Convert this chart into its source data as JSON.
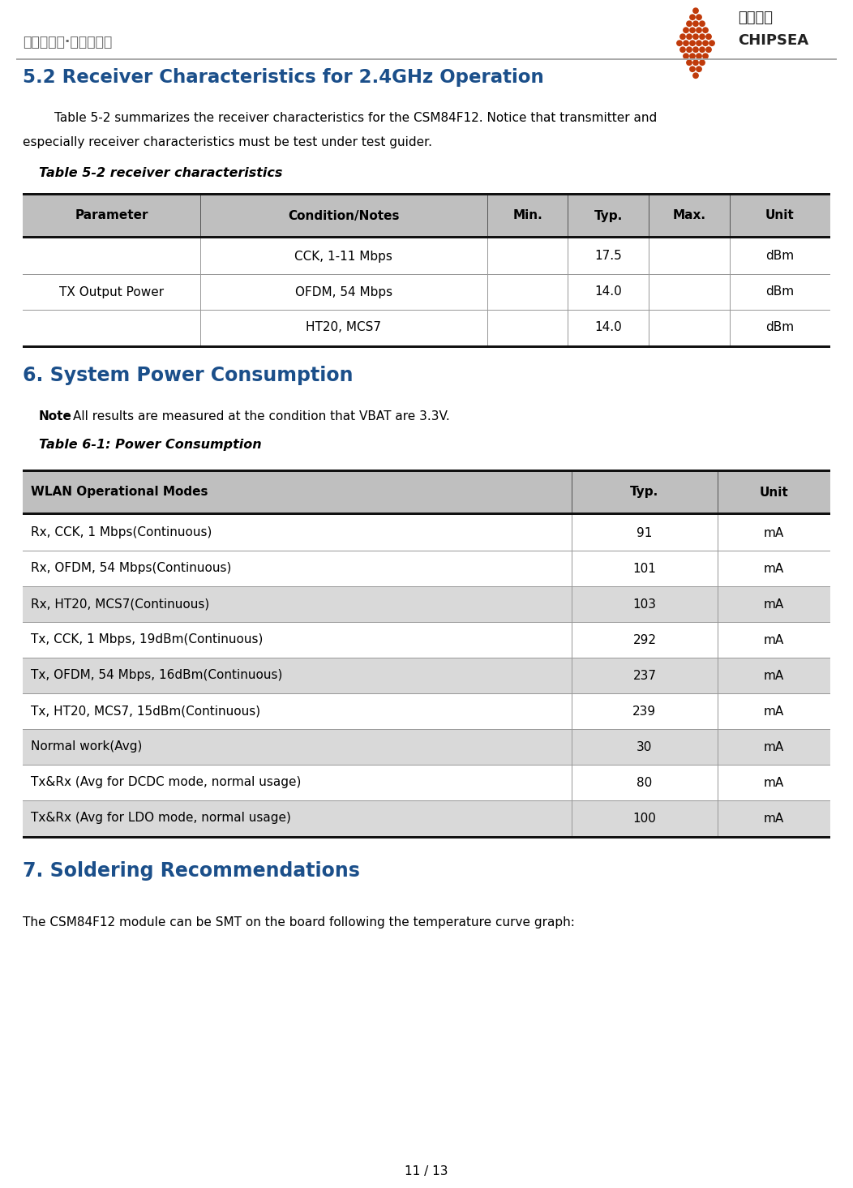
{
  "header_text": "聚点滴之芯·成浩瀚之海",
  "logo_text1": "芯海科技",
  "logo_text2": "CHIPSEA",
  "section52_title": "5.2 Receiver Characteristics for 2.4GHz Operation",
  "section52_body1": "        Table 5-2 summarizes the receiver characteristics for the CSM84F12. Notice that transmitter and",
  "section52_body2": "especially receiver characteristics must be test under test guider.",
  "table52_title": "Table 5-2 receiver characteristics",
  "table52_headers": [
    "Parameter",
    "Condition/Notes",
    "Min.",
    "Typ.",
    "Max.",
    "Unit"
  ],
  "table52_col_ratios": [
    0.22,
    0.355,
    0.1,
    0.1,
    0.1,
    0.125
  ],
  "table52_rows": [
    [
      "TX Output Power",
      "CCK, 1-11 Mbps",
      "",
      "17.5",
      "",
      "dBm"
    ],
    [
      "TX Output Power",
      "OFDM, 54 Mbps",
      "",
      "14.0",
      "",
      "dBm"
    ],
    [
      "TX Output Power",
      "HT20, MCS7",
      "",
      "14.0",
      "",
      "dBm"
    ]
  ],
  "section6_title": "6. System Power Consumption",
  "section6_note_bold": "Note",
  "section6_note_normal": ": All results are measured at the condition that VBAT are 3.3V.",
  "table61_title": "Table 6-1: Power Consumption",
  "table61_headers": [
    "WLAN Operational Modes",
    "Typ.",
    "Unit"
  ],
  "table61_col_ratios": [
    0.68,
    0.18,
    0.14
  ],
  "table61_rows": [
    [
      "Rx, CCK, 1 Mbps(Continuous)",
      "91",
      "mA"
    ],
    [
      "Rx, OFDM, 54 Mbps(Continuous)",
      "101",
      "mA"
    ],
    [
      "Rx, HT20, MCS7(Continuous)",
      "103",
      "mA"
    ],
    [
      "Tx, CCK, 1 Mbps, 19dBm(Continuous)",
      "292",
      "mA"
    ],
    [
      "Tx, OFDM, 54 Mbps, 16dBm(Continuous)",
      "237",
      "mA"
    ],
    [
      "Tx, HT20, MCS7, 15dBm(Continuous)",
      "239",
      "mA"
    ],
    [
      "Normal work(Avg)",
      "30",
      "mA"
    ],
    [
      "Tx&Rx (Avg for DCDC mode, normal usage)",
      "80",
      "mA"
    ],
    [
      "Tx&Rx (Avg for LDO mode, normal usage)",
      "100",
      "mA"
    ]
  ],
  "section7_title": "7. Soldering Recommendations",
  "section7_body": "The CSM84F12 module can be SMT on the board following the temperature curve graph:",
  "footer_text": "11 / 13",
  "section_title_color": "#1B4F8A",
  "table_header_bg": "#BFBFBF",
  "table_row_bg_white": "#FFFFFF",
  "table_row_bg_grey": "#D9D9D9",
  "table_border_thick": "#111111",
  "table_border_thin": "#999999",
  "body_text_color": "#000000",
  "header_text_color": "#666666",
  "dot_color": "#C03A0A"
}
